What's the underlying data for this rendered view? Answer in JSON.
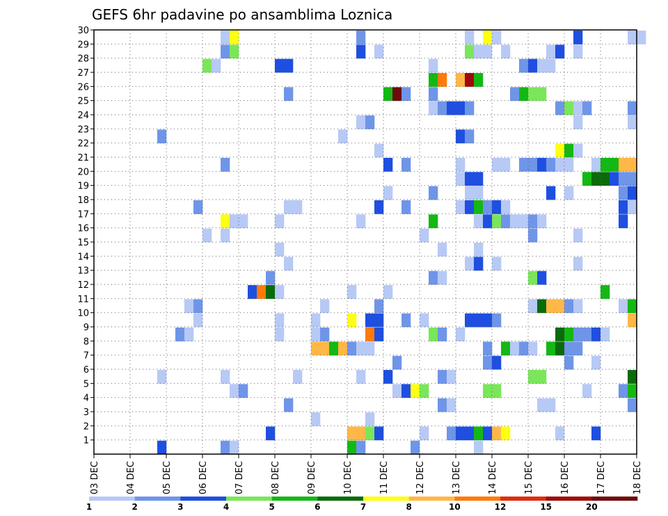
{
  "chart_data": {
    "type": "heatmap",
    "title": "GEFS 6hr padavine po ansamblima Loznica",
    "xlabel": "",
    "ylabel": "",
    "x_tick_labels": [
      "03 DEC",
      "04 DEC",
      "05 DEC",
      "06 DEC",
      "07 DEC",
      "08 DEC",
      "09 DEC",
      "10 DEC",
      "11 DEC",
      "12 DEC",
      "13 DEC",
      "14 DEC",
      "15 DEC",
      "16 DEC",
      "17 DEC",
      "18 DEC"
    ],
    "y_tick_labels": [
      "1",
      "2",
      "3",
      "4",
      "5",
      "6",
      "7",
      "8",
      "9",
      "10",
      "11",
      "12",
      "13",
      "14",
      "15",
      "16",
      "17",
      "18",
      "19",
      "20",
      "21",
      "22",
      "23",
      "24",
      "25",
      "26",
      "27",
      "28",
      "29",
      "30"
    ],
    "x_range_days": [
      0,
      15
    ],
    "time_step_hours": 6,
    "members": 30,
    "grid": "dotted",
    "legend_position": "bottom",
    "colorbar": {
      "labels": [
        "1",
        "2",
        "3",
        "4",
        "5",
        "6",
        "7",
        "8",
        "10",
        "12",
        "15",
        "20"
      ],
      "colors": [
        "#b7c9f5",
        "#6f95e8",
        "#1f4fe0",
        "#7ae65a",
        "#14b814",
        "#0a6b0a",
        "#ffff14",
        "#ffb847",
        "#ff7a0a",
        "#e02c0a",
        "#a00a0a",
        "#6e0a0a"
      ]
    },
    "cells": [
      [
        30,
        14,
        "l"
      ],
      [
        30,
        15,
        "y"
      ],
      [
        30,
        29,
        "m"
      ],
      [
        30,
        41,
        "l"
      ],
      [
        30,
        43,
        "y"
      ],
      [
        30,
        44,
        "l"
      ],
      [
        30,
        53,
        "b"
      ],
      [
        30,
        59,
        "l"
      ],
      [
        30,
        60,
        "l"
      ],
      [
        29,
        14,
        "m"
      ],
      [
        29,
        15,
        "G"
      ],
      [
        29,
        29,
        "b"
      ],
      [
        29,
        31,
        "l"
      ],
      [
        29,
        41,
        "G"
      ],
      [
        29,
        42,
        "l"
      ],
      [
        29,
        43,
        "l"
      ],
      [
        29,
        45,
        "l"
      ],
      [
        29,
        50,
        "l"
      ],
      [
        29,
        51,
        "b"
      ],
      [
        29,
        53,
        "l"
      ],
      [
        28,
        12,
        "G"
      ],
      [
        28,
        13,
        "l"
      ],
      [
        28,
        20,
        "b"
      ],
      [
        28,
        21,
        "b"
      ],
      [
        28,
        37,
        "l"
      ],
      [
        28,
        47,
        "m"
      ],
      [
        28,
        48,
        "b"
      ],
      [
        28,
        49,
        "l"
      ],
      [
        28,
        50,
        "l"
      ],
      [
        27,
        37,
        "g"
      ],
      [
        27,
        38,
        "o"
      ],
      [
        27,
        40,
        "a"
      ],
      [
        27,
        41,
        "D"
      ],
      [
        27,
        42,
        "g"
      ],
      [
        26,
        21,
        "m"
      ],
      [
        26,
        32,
        "g"
      ],
      [
        26,
        33,
        "M"
      ],
      [
        26,
        34,
        "m"
      ],
      [
        26,
        37,
        "m"
      ],
      [
        26,
        46,
        "m"
      ],
      [
        26,
        47,
        "g"
      ],
      [
        26,
        48,
        "G"
      ],
      [
        26,
        49,
        "G"
      ],
      [
        25,
        37,
        "l"
      ],
      [
        25,
        38,
        "m"
      ],
      [
        25,
        39,
        "b"
      ],
      [
        25,
        40,
        "b"
      ],
      [
        25,
        41,
        "m"
      ],
      [
        25,
        51,
        "m"
      ],
      [
        25,
        52,
        "G"
      ],
      [
        25,
        53,
        "l"
      ],
      [
        25,
        54,
        "m"
      ],
      [
        25,
        59,
        "m"
      ],
      [
        24,
        29,
        "l"
      ],
      [
        24,
        30,
        "m"
      ],
      [
        24,
        53,
        "l"
      ],
      [
        24,
        59,
        "l"
      ],
      [
        23,
        7,
        "m"
      ],
      [
        23,
        27,
        "l"
      ],
      [
        23,
        40,
        "b"
      ],
      [
        23,
        41,
        "m"
      ],
      [
        22,
        31,
        "l"
      ],
      [
        22,
        51,
        "y"
      ],
      [
        22,
        52,
        "g"
      ],
      [
        22,
        53,
        "l"
      ],
      [
        21,
        14,
        "m"
      ],
      [
        21,
        32,
        "b"
      ],
      [
        21,
        34,
        "m"
      ],
      [
        21,
        40,
        "l"
      ],
      [
        21,
        44,
        "l"
      ],
      [
        21,
        45,
        "l"
      ],
      [
        21,
        47,
        "m"
      ],
      [
        21,
        48,
        "m"
      ],
      [
        21,
        49,
        "b"
      ],
      [
        21,
        50,
        "m"
      ],
      [
        21,
        51,
        "l"
      ],
      [
        21,
        52,
        "l"
      ],
      [
        21,
        55,
        "l"
      ],
      [
        21,
        56,
        "g"
      ],
      [
        21,
        57,
        "g"
      ],
      [
        21,
        58,
        "a"
      ],
      [
        21,
        59,
        "a"
      ],
      [
        20,
        40,
        "l"
      ],
      [
        20,
        41,
        "b"
      ],
      [
        20,
        42,
        "b"
      ],
      [
        20,
        54,
        "g"
      ],
      [
        20,
        55,
        "d"
      ],
      [
        20,
        56,
        "d"
      ],
      [
        20,
        57,
        "b"
      ],
      [
        20,
        58,
        "m"
      ],
      [
        20,
        59,
        "m"
      ],
      [
        19,
        32,
        "l"
      ],
      [
        19,
        37,
        "m"
      ],
      [
        19,
        41,
        "l"
      ],
      [
        19,
        42,
        "l"
      ],
      [
        19,
        50,
        "b"
      ],
      [
        19,
        52,
        "l"
      ],
      [
        19,
        58,
        "m"
      ],
      [
        19,
        59,
        "b"
      ],
      [
        18,
        11,
        "m"
      ],
      [
        18,
        21,
        "l"
      ],
      [
        18,
        22,
        "l"
      ],
      [
        18,
        31,
        "b"
      ],
      [
        18,
        34,
        "m"
      ],
      [
        18,
        40,
        "l"
      ],
      [
        18,
        41,
        "b"
      ],
      [
        18,
        42,
        "g"
      ],
      [
        18,
        43,
        "m"
      ],
      [
        18,
        44,
        "b"
      ],
      [
        18,
        45,
        "l"
      ],
      [
        18,
        58,
        "b"
      ],
      [
        18,
        59,
        "l"
      ],
      [
        17,
        14,
        "y"
      ],
      [
        17,
        15,
        "l"
      ],
      [
        17,
        16,
        "l"
      ],
      [
        17,
        20,
        "l"
      ],
      [
        17,
        29,
        "l"
      ],
      [
        17,
        37,
        "g"
      ],
      [
        17,
        42,
        "l"
      ],
      [
        17,
        43,
        "b"
      ],
      [
        17,
        44,
        "G"
      ],
      [
        17,
        45,
        "m"
      ],
      [
        17,
        46,
        "l"
      ],
      [
        17,
        47,
        "l"
      ],
      [
        17,
        48,
        "m"
      ],
      [
        17,
        49,
        "l"
      ],
      [
        17,
        58,
        "b"
      ],
      [
        16,
        12,
        "l"
      ],
      [
        16,
        14,
        "l"
      ],
      [
        16,
        36,
        "l"
      ],
      [
        16,
        48,
        "m"
      ],
      [
        16,
        53,
        "l"
      ],
      [
        15,
        20,
        "l"
      ],
      [
        15,
        38,
        "l"
      ],
      [
        15,
        42,
        "l"
      ],
      [
        14,
        21,
        "l"
      ],
      [
        14,
        41,
        "l"
      ],
      [
        14,
        42,
        "b"
      ],
      [
        14,
        44,
        "l"
      ],
      [
        14,
        53,
        "l"
      ],
      [
        13,
        19,
        "m"
      ],
      [
        13,
        37,
        "m"
      ],
      [
        13,
        38,
        "l"
      ],
      [
        13,
        48,
        "G"
      ],
      [
        13,
        49,
        "b"
      ],
      [
        12,
        17,
        "b"
      ],
      [
        12,
        18,
        "o"
      ],
      [
        12,
        19,
        "d"
      ],
      [
        12,
        20,
        "l"
      ],
      [
        12,
        28,
        "l"
      ],
      [
        12,
        32,
        "l"
      ],
      [
        12,
        56,
        "g"
      ],
      [
        11,
        10,
        "l"
      ],
      [
        11,
        11,
        "m"
      ],
      [
        11,
        25,
        "l"
      ],
      [
        11,
        31,
        "m"
      ],
      [
        11,
        48,
        "l"
      ],
      [
        11,
        49,
        "d"
      ],
      [
        11,
        50,
        "a"
      ],
      [
        11,
        51,
        "a"
      ],
      [
        11,
        52,
        "m"
      ],
      [
        11,
        53,
        "l"
      ],
      [
        11,
        58,
        "l"
      ],
      [
        11,
        59,
        "g"
      ],
      [
        10,
        11,
        "l"
      ],
      [
        10,
        20,
        "l"
      ],
      [
        10,
        24,
        "l"
      ],
      [
        10,
        28,
        "y"
      ],
      [
        10,
        30,
        "b"
      ],
      [
        10,
        31,
        "b"
      ],
      [
        10,
        34,
        "m"
      ],
      [
        10,
        36,
        "l"
      ],
      [
        10,
        41,
        "b"
      ],
      [
        10,
        42,
        "b"
      ],
      [
        10,
        43,
        "b"
      ],
      [
        10,
        44,
        "m"
      ],
      [
        10,
        59,
        "a"
      ],
      [
        9,
        9,
        "m"
      ],
      [
        9,
        10,
        "l"
      ],
      [
        9,
        20,
        "l"
      ],
      [
        9,
        24,
        "l"
      ],
      [
        9,
        25,
        "m"
      ],
      [
        9,
        30,
        "o"
      ],
      [
        9,
        31,
        "b"
      ],
      [
        9,
        37,
        "G"
      ],
      [
        9,
        38,
        "m"
      ],
      [
        9,
        40,
        "l"
      ],
      [
        9,
        51,
        "d"
      ],
      [
        9,
        52,
        "g"
      ],
      [
        9,
        53,
        "m"
      ],
      [
        9,
        54,
        "m"
      ],
      [
        9,
        55,
        "b"
      ],
      [
        9,
        56,
        "l"
      ],
      [
        8,
        24,
        "a"
      ],
      [
        8,
        25,
        "a"
      ],
      [
        8,
        26,
        "g"
      ],
      [
        8,
        27,
        "a"
      ],
      [
        8,
        28,
        "m"
      ],
      [
        8,
        29,
        "l"
      ],
      [
        8,
        30,
        "l"
      ],
      [
        8,
        43,
        "m"
      ],
      [
        8,
        45,
        "g"
      ],
      [
        8,
        46,
        "l"
      ],
      [
        8,
        47,
        "m"
      ],
      [
        8,
        48,
        "l"
      ],
      [
        8,
        50,
        "g"
      ],
      [
        8,
        51,
        "d"
      ],
      [
        8,
        52,
        "m"
      ],
      [
        8,
        53,
        "m"
      ],
      [
        7,
        33,
        "m"
      ],
      [
        7,
        43,
        "m"
      ],
      [
        7,
        44,
        "b"
      ],
      [
        7,
        52,
        "m"
      ],
      [
        7,
        55,
        "l"
      ],
      [
        6,
        7,
        "l"
      ],
      [
        6,
        14,
        "l"
      ],
      [
        6,
        22,
        "l"
      ],
      [
        6,
        29,
        "l"
      ],
      [
        6,
        32,
        "b"
      ],
      [
        6,
        38,
        "m"
      ],
      [
        6,
        39,
        "l"
      ],
      [
        6,
        48,
        "G"
      ],
      [
        6,
        49,
        "G"
      ],
      [
        6,
        59,
        "d"
      ],
      [
        5,
        15,
        "l"
      ],
      [
        5,
        16,
        "m"
      ],
      [
        5,
        33,
        "l"
      ],
      [
        5,
        34,
        "b"
      ],
      [
        5,
        35,
        "y"
      ],
      [
        5,
        36,
        "G"
      ],
      [
        5,
        43,
        "G"
      ],
      [
        5,
        44,
        "G"
      ],
      [
        5,
        54,
        "l"
      ],
      [
        5,
        58,
        "m"
      ],
      [
        5,
        59,
        "g"
      ],
      [
        4,
        21,
        "m"
      ],
      [
        4,
        38,
        "m"
      ],
      [
        4,
        39,
        "l"
      ],
      [
        4,
        49,
        "l"
      ],
      [
        4,
        50,
        "l"
      ],
      [
        4,
        59,
        "m"
      ],
      [
        3,
        24,
        "l"
      ],
      [
        3,
        30,
        "l"
      ],
      [
        2,
        19,
        "b"
      ],
      [
        2,
        28,
        "a"
      ],
      [
        2,
        29,
        "a"
      ],
      [
        2,
        30,
        "G"
      ],
      [
        2,
        31,
        "b"
      ],
      [
        2,
        36,
        "l"
      ],
      [
        2,
        39,
        "m"
      ],
      [
        2,
        40,
        "b"
      ],
      [
        2,
        41,
        "b"
      ],
      [
        2,
        42,
        "g"
      ],
      [
        2,
        43,
        "b"
      ],
      [
        2,
        44,
        "a"
      ],
      [
        2,
        45,
        "y"
      ],
      [
        2,
        51,
        "l"
      ],
      [
        2,
        55,
        "b"
      ],
      [
        1,
        7,
        "b"
      ],
      [
        1,
        14,
        "m"
      ],
      [
        1,
        15,
        "l"
      ],
      [
        1,
        28,
        "g"
      ],
      [
        1,
        29,
        "m"
      ],
      [
        1,
        35,
        "m"
      ],
      [
        1,
        42,
        "l"
      ]
    ]
  }
}
